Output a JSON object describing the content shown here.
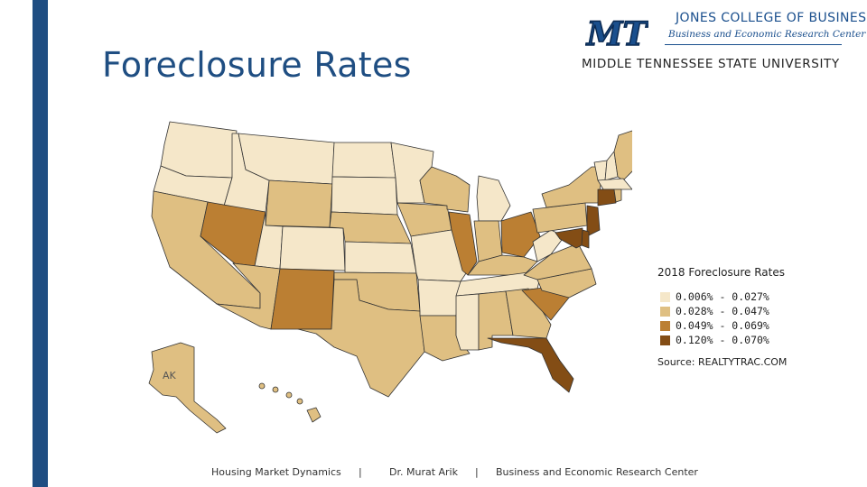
{
  "slide": {
    "title": "Foreclosure Rates"
  },
  "logo": {
    "college": "JONES COLLEGE OF BUSINESS",
    "center": "Business and Economic Research Center",
    "university": "MIDDLE TENNESSEE STATE UNIVERSITY",
    "mark": "MT"
  },
  "map": {
    "alaska_label": "AK",
    "color_scale": [
      "#f5e7c9",
      "#dfbf82",
      "#bb7f33",
      "#834d15"
    ],
    "states": {
      "WA": 0,
      "OR": 0,
      "CA": 1,
      "ID": 0,
      "NV": 2,
      "MT": 0,
      "WY": 1,
      "UT": 0,
      "AZ": 1,
      "CO": 0,
      "NM": 2,
      "ND": 0,
      "SD": 0,
      "NE": 1,
      "KS": 0,
      "OK": 1,
      "TX": 1,
      "MN": 0,
      "IA": 1,
      "MO": 0,
      "AR": 0,
      "LA": 1,
      "WI": 1,
      "IL": 2,
      "MI": 0,
      "IN": 1,
      "OH": 2,
      "KY": 1,
      "TN": 0,
      "MS": 0,
      "AL": 1,
      "GA": 1,
      "FL": 3,
      "SC": 2,
      "NC": 1,
      "VA": 1,
      "WV": 0,
      "PA": 1,
      "NY": 1,
      "VT": 0,
      "NH": 0,
      "ME": 1,
      "MA": 0,
      "CT": 3,
      "RI": 1,
      "NJ": 3,
      "DE": 3,
      "MD": 3,
      "AK": 1,
      "HI": 1
    }
  },
  "legend": {
    "title": "2018 Foreclosure Rates",
    "items": [
      {
        "label": "0.006% - 0.027%",
        "color": "#f5e7c9"
      },
      {
        "label": "0.028% - 0.047%",
        "color": "#dfbf82"
      },
      {
        "label": "0.049% - 0.069%",
        "color": "#bb7f33"
      },
      {
        "label": "0.120% - 0.070%",
        "color": "#834d15"
      }
    ],
    "source": "Source: REALTYTRAC.COM"
  },
  "footer": {
    "left": "Housing Market Dynamics",
    "sep1": "|",
    "center": "Dr. Murat Arik",
    "sep2": "|",
    "right": "Business and Economic Research Center"
  }
}
